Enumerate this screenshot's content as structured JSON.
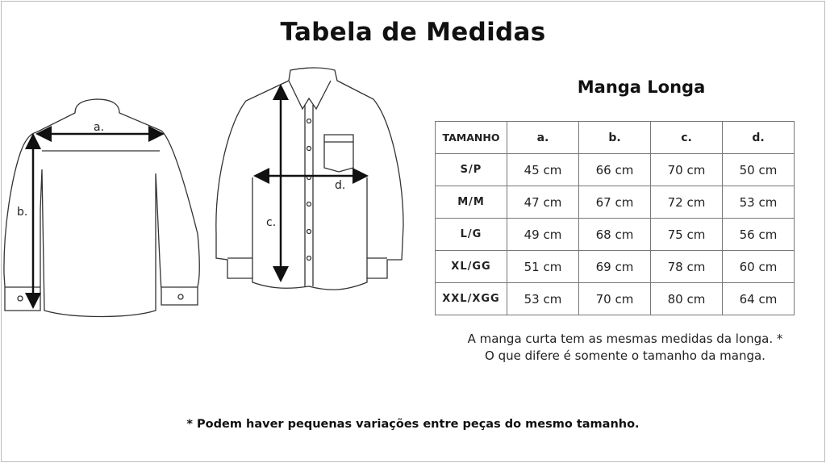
{
  "title": "Tabela de Medidas",
  "subtitle": "Manga Longa",
  "diagram_labels": {
    "a": "a.",
    "b": "b.",
    "c": "c.",
    "d": "d."
  },
  "table": {
    "headers": [
      "TAMANHO",
      "a.",
      "b.",
      "c.",
      "d."
    ],
    "rows": [
      [
        "S/P",
        "45 cm",
        "66 cm",
        "70 cm",
        "50 cm"
      ],
      [
        "M/M",
        "47 cm",
        "67 cm",
        "72 cm",
        "53 cm"
      ],
      [
        "L/G",
        "49 cm",
        "68 cm",
        "75 cm",
        "56 cm"
      ],
      [
        "XL/GG",
        "51 cm",
        "69 cm",
        "78 cm",
        "60 cm"
      ],
      [
        "XXL/XGG",
        "53 cm",
        "70 cm",
        "80 cm",
        "64 cm"
      ]
    ]
  },
  "note_line1": "A manga curta tem as mesmas medidas da longa. *",
  "note_line2": "O que difere é somente o tamanho da manga.",
  "footnote": "* Podem haver pequenas variações entre peças do mesmo tamanho."
}
